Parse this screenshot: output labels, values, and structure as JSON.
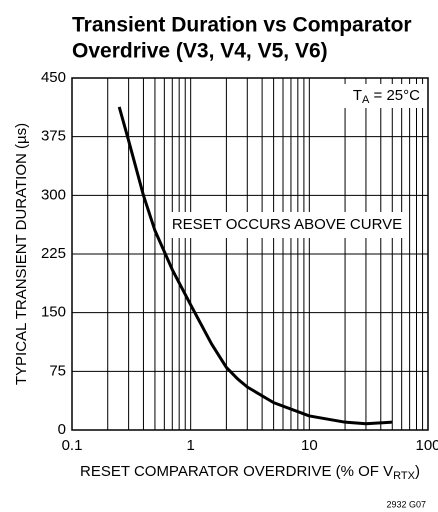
{
  "chart_data": {
    "type": "line",
    "title": [
      "Transient Duration vs Comparator",
      "Overdrive (V3, V4, V5, V6)"
    ],
    "annotation": {
      "main": "T",
      "sub": "A",
      "rest": " = 25°C"
    },
    "region_label": "RESET OCCURS ABOVE CURVE",
    "y_label": "TYPICAL TRANSIENT DURATION (µs)",
    "x_label": {
      "main": "RESET COMPARATOR OVERDRIVE (% OF V",
      "sub": "RTX",
      "rest": ")"
    },
    "footnote": "2932 G07",
    "x_scale": "log",
    "x": [
      0.25,
      0.3,
      0.4,
      0.5,
      0.7,
      1,
      1.5,
      2,
      2.5,
      3,
      5,
      10,
      20,
      30,
      50
    ],
    "values": [
      413,
      370,
      300,
      255,
      205,
      160,
      110,
      80,
      65,
      55,
      35,
      18,
      10,
      8,
      10
    ],
    "color": "#000000",
    "xlim": [
      0.1,
      100
    ],
    "xticks": [
      0.1,
      1,
      10,
      100
    ],
    "x_minor_grid": [
      0.2,
      0.3,
      0.4,
      0.5,
      0.6,
      0.7,
      0.8,
      0.9,
      2,
      3,
      4,
      5,
      6,
      7,
      8,
      9,
      20,
      30,
      40,
      50,
      60,
      70,
      80,
      90
    ],
    "ylim": [
      0,
      450
    ],
    "yticks": [
      0,
      75,
      150,
      225,
      300,
      375,
      450
    ],
    "grid": true
  }
}
